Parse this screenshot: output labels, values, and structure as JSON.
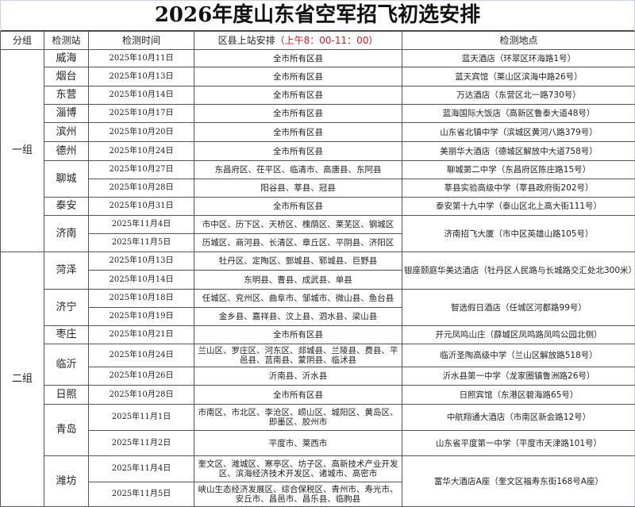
{
  "title": "2026年度山东省空军招飞初选安排",
  "headers": {
    "group": "分组",
    "station": "检测站",
    "date": "检测时间",
    "districts": "区县上站安排",
    "time_note": "（上午8：00-11：00）",
    "location": "检测地点"
  },
  "colors": {
    "time_note": "#e5141b"
  },
  "groups": [
    {
      "name": "一组",
      "stations": [
        {
          "name": "威海",
          "location": "蓝天酒店（环翠区环海路1号）",
          "sessions": [
            {
              "date": "2025年10月11日",
              "districts": "全市所有区县"
            }
          ]
        },
        {
          "name": "烟台",
          "location": "蓝天宾馆（莱山区滨海中路26号）",
          "sessions": [
            {
              "date": "2025年10月13日",
              "districts": "全市所有区县"
            }
          ]
        },
        {
          "name": "东营",
          "location": "万达酒店（东营区北一路730号）",
          "sessions": [
            {
              "date": "2025年10月14日",
              "districts": "全市所有区县"
            }
          ]
        },
        {
          "name": "淄博",
          "location": "蓝海国际大饭店（高新区鲁泰大道48号）",
          "sessions": [
            {
              "date": "2025年10月17日",
              "districts": "全市所有区县"
            }
          ]
        },
        {
          "name": "滨州",
          "location": "山东省北镇中学（滨城区黄河八路379号）",
          "sessions": [
            {
              "date": "2025年10月20日",
              "districts": "全市所有区县"
            }
          ]
        },
        {
          "name": "德州",
          "location": "美丽华大酒店（德城区解放中大道758号）",
          "sessions": [
            {
              "date": "2025年10月24日",
              "districts": "全市所有区县"
            }
          ]
        },
        {
          "name": "聊城",
          "sessions": [
            {
              "date": "2025年10月27日",
              "districts": "东昌府区、茌平区、临清市、高唐县、东阿县",
              "location": "聊城第二中学（东昌府区陈庄路15号）"
            },
            {
              "date": "2025年10月28日",
              "districts": "阳谷县、莘县、冠县",
              "location": "莘县实验高级中学（莘县政府街202号）"
            }
          ]
        },
        {
          "name": "泰安",
          "location": "泰安第十九中学（泰山区北上高大街111号）",
          "sessions": [
            {
              "date": "2025年10月31日",
              "districts": "全市所有区县"
            }
          ]
        },
        {
          "name": "济南",
          "location": "济南招飞大厦（市中区英雄山路105号）",
          "sessions": [
            {
              "date": "2025年11月4日",
              "districts": "市中区、历下区、天桥区、槐荫区、莱芜区、钢城区"
            },
            {
              "date": "2025年11月5日",
              "districts": "历城区、商河县、长清区、章丘区、平阴县、济阳区"
            }
          ]
        }
      ]
    },
    {
      "name": "二组",
      "stations": [
        {
          "name": "菏泽",
          "location": "银座颐庭华美达酒店（牡丹区人民路与长城路交汇处北300米）",
          "sessions": [
            {
              "date": "2025年10月13日",
              "districts": "牡丹区、定陶区、鄄城县、郓城县、巨野县"
            },
            {
              "date": "2025年10月14日",
              "districts": "东明县、曹县、成武县、单县"
            }
          ]
        },
        {
          "name": "济宁",
          "location": "智选假日酒店（任城区河都路99号）",
          "sessions": [
            {
              "date": "2025年10月18日",
              "districts": "任城区、兖州区、曲阜市、邹城市、微山县、鱼台县"
            },
            {
              "date": "2025年10月19日",
              "districts": "金乡县、嘉祥县、汶上县、泗水县、梁山县"
            }
          ]
        },
        {
          "name": "枣庄",
          "location": "开元凤鸣山庄（薛城区凤鸣路凤鸣公园北侧）",
          "sessions": [
            {
              "date": "2025年10月21日",
              "districts": "全市所有区县"
            }
          ]
        },
        {
          "name": "临沂",
          "sessions": [
            {
              "date": "2025年10月24日",
              "districts": "兰山区、罗庄区、河东区、郯城县、兰陵县、费县、平邑县、莒南县、蒙阴县、临沭县",
              "location": "临沂圣陶高级中学（兰山区解放路518号）"
            },
            {
              "date": "2025年10月26日",
              "districts": "沂南县、沂水县",
              "location": "沂水县第一中学（龙家圈镇鲁洲路26号）"
            }
          ]
        },
        {
          "name": "日照",
          "location": "日照宾馆（东港区碧海路65号）",
          "sessions": [
            {
              "date": "2025年10月28日",
              "districts": "全市所有区县"
            }
          ]
        },
        {
          "name": "青岛",
          "sessions": [
            {
              "date": "2025年11月1日",
              "districts": "市南区、市北区、李沧区、崂山区、城阳区、黄岛区、即墨区、胶州市",
              "location": "中航翔通大酒店（市南区新会路12号）"
            },
            {
              "date": "2025年11月2日",
              "districts": "平度市、莱西市",
              "location": "山东省平度第一中学（平度市天津路101号）"
            }
          ]
        },
        {
          "name": "潍坊",
          "location": "富华大酒店A座（奎文区福寿东街168号A座）",
          "sessions": [
            {
              "date": "2025年11月4日",
              "districts": "奎文区、潍城区、寒亭区、坊子区、高新技术产业开发区、滨海经济技术开发区、诸城市、高密市"
            },
            {
              "date": "2025年11月5日",
              "districts": "峡山生态经济发展区、综合保税区、青州市、寿光市、安丘市、昌邑市、昌乐县、临朐县"
            }
          ]
        }
      ]
    }
  ]
}
